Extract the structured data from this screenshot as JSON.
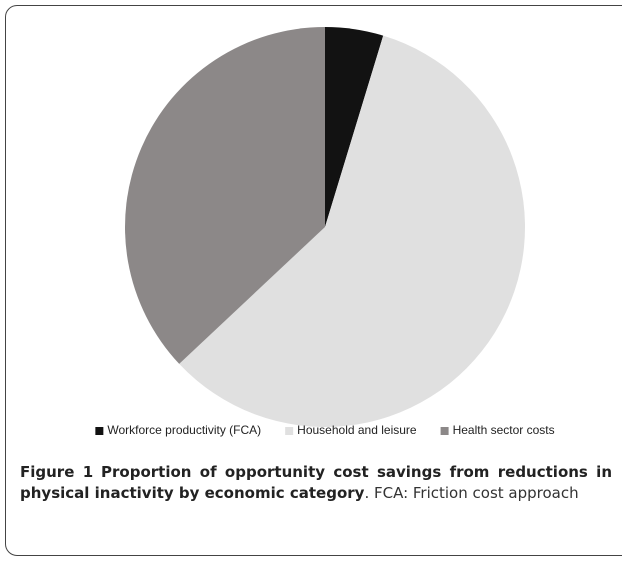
{
  "chart_data": {
    "type": "pie",
    "categories": [
      "Workforce productivity (FCA)",
      "Household and leisure",
      "Health sector costs"
    ],
    "values": [
      4.7,
      58.3,
      37
    ],
    "colors": [
      "#121212",
      "#e0e0e0",
      "#8c8888"
    ],
    "legend": "bottom"
  },
  "caption": {
    "label": "Figure 1",
    "title": "Proportion of opportunity cost savings from reductions in physical inactivity by economic category",
    "note": ". FCA: Friction cost approach"
  }
}
